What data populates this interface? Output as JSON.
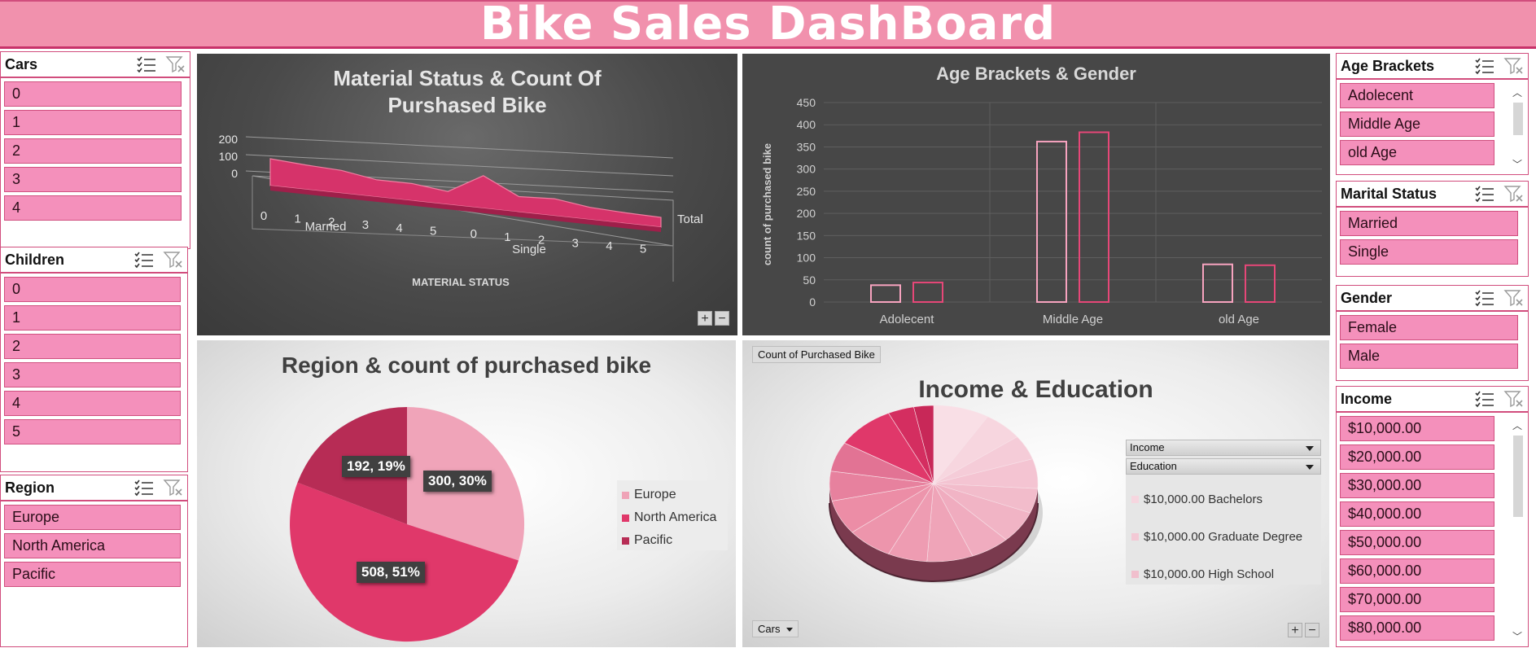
{
  "header": {
    "title": "Bike Sales DashBoard"
  },
  "slicers": {
    "cars": {
      "title": "Cars",
      "items": [
        "0",
        "1",
        "2",
        "3",
        "4"
      ]
    },
    "children": {
      "title": "Children",
      "items": [
        "0",
        "1",
        "2",
        "3",
        "4",
        "5"
      ]
    },
    "region": {
      "title": "Region",
      "items": [
        "Europe",
        "North America",
        "Pacific"
      ]
    },
    "age": {
      "title": "Age Brackets",
      "items": [
        "Adolecent",
        "Middle Age",
        "old Age"
      ]
    },
    "marital": {
      "title": "Marital Status",
      "items": [
        "Married",
        "Single"
      ]
    },
    "gender": {
      "title": "Gender",
      "items": [
        "Female",
        "Male"
      ]
    },
    "income": {
      "title": "Income",
      "items": [
        "$10,000.00",
        "$20,000.00",
        "$30,000.00",
        "$40,000.00",
        "$50,000.00",
        "$60,000.00",
        "$70,000.00",
        "$80,000.00"
      ]
    }
  },
  "icons": {
    "multiselect": "multiselect-icon",
    "clear_filter": "clear-filter-icon"
  },
  "colors": {
    "accent": "#d14d7d",
    "item_fill": "#f490bb",
    "header": "#f191ad"
  },
  "charts": {
    "material": {
      "title_line1": "Material Status & Count Of",
      "title_line2": "Pursh​ased Bike",
      "y_ticks": [
        "200",
        "100",
        "0"
      ],
      "x_ticks_married": [
        "0",
        "1",
        "2",
        "3",
        "4",
        "5"
      ],
      "x_ticks_single": [
        "0",
        "1",
        "2",
        "3",
        "4",
        "5"
      ],
      "group_married": "Married",
      "group_single": "Single",
      "series_label": "Total",
      "xlabel": "MATERIAL STATUS",
      "zoom_plus": "+",
      "zoom_minus": "−"
    },
    "age": {
      "title": "Age Brackets & Gender",
      "ylabel": "count of purchased bike",
      "y_ticks": [
        "450",
        "400",
        "350",
        "300",
        "250",
        "200",
        "150",
        "100",
        "50",
        "0"
      ],
      "categories": [
        "Adolecent",
        "Middle Age",
        "old Age"
      ]
    },
    "region": {
      "title": "Region & count of purchased bike",
      "legend": [
        "Europe",
        "North America",
        "Pacific"
      ],
      "labels": [
        "300, 30%",
        "508, 51%",
        "192, 19%"
      ]
    },
    "income": {
      "title": "Income & Education",
      "field_button": "Count of Purchased Bike",
      "filter_income": "Income",
      "filter_education": "Education",
      "legend": [
        "$10,000.00 Bachelors",
        "$10,000.00 Graduate Degree",
        "$10,000.00 High School"
      ],
      "axis_button": "Cars",
      "zoom_plus": "+",
      "zoom_minus": "−"
    }
  },
  "chart_data": [
    {
      "type": "area",
      "title": "Material Status & Count Of Purshased Bike",
      "xlabel": "MATERIAL STATUS",
      "categories": [
        "Married 0",
        "Married 1",
        "Married 2",
        "Married 3",
        "Married 4",
        "Married 5",
        "Single 0",
        "Single 1",
        "Single 2",
        "Single 3",
        "Single 4",
        "Single 5"
      ],
      "series": [
        {
          "name": "Total",
          "values": [
            115,
            100,
            90,
            55,
            55,
            30,
            150,
            45,
            55,
            25,
            15,
            10
          ]
        }
      ],
      "ylim": [
        0,
        200
      ]
    },
    {
      "type": "bar",
      "title": "Age Brackets & Gender",
      "ylabel": "count of purchased bike",
      "categories": [
        "Adolecent",
        "Middle Age",
        "old Age"
      ],
      "series": [
        {
          "values": [
            38,
            362,
            85
          ]
        },
        {
          "values": [
            44,
            383,
            83
          ]
        }
      ],
      "ylim": [
        0,
        450
      ],
      "grid": true
    },
    {
      "type": "pie",
      "title": "Region & count of purchased bike",
      "categories": [
        "Europe",
        "North America",
        "Pacific"
      ],
      "values": [
        300,
        508,
        192
      ],
      "legend": "right"
    },
    {
      "type": "pie",
      "title": "Income & Education",
      "categories": [
        "$10,000.00 Bachelors",
        "$10,000.00 Graduate Degree",
        "$10,000.00 High School"
      ],
      "legend": "right"
    }
  ]
}
